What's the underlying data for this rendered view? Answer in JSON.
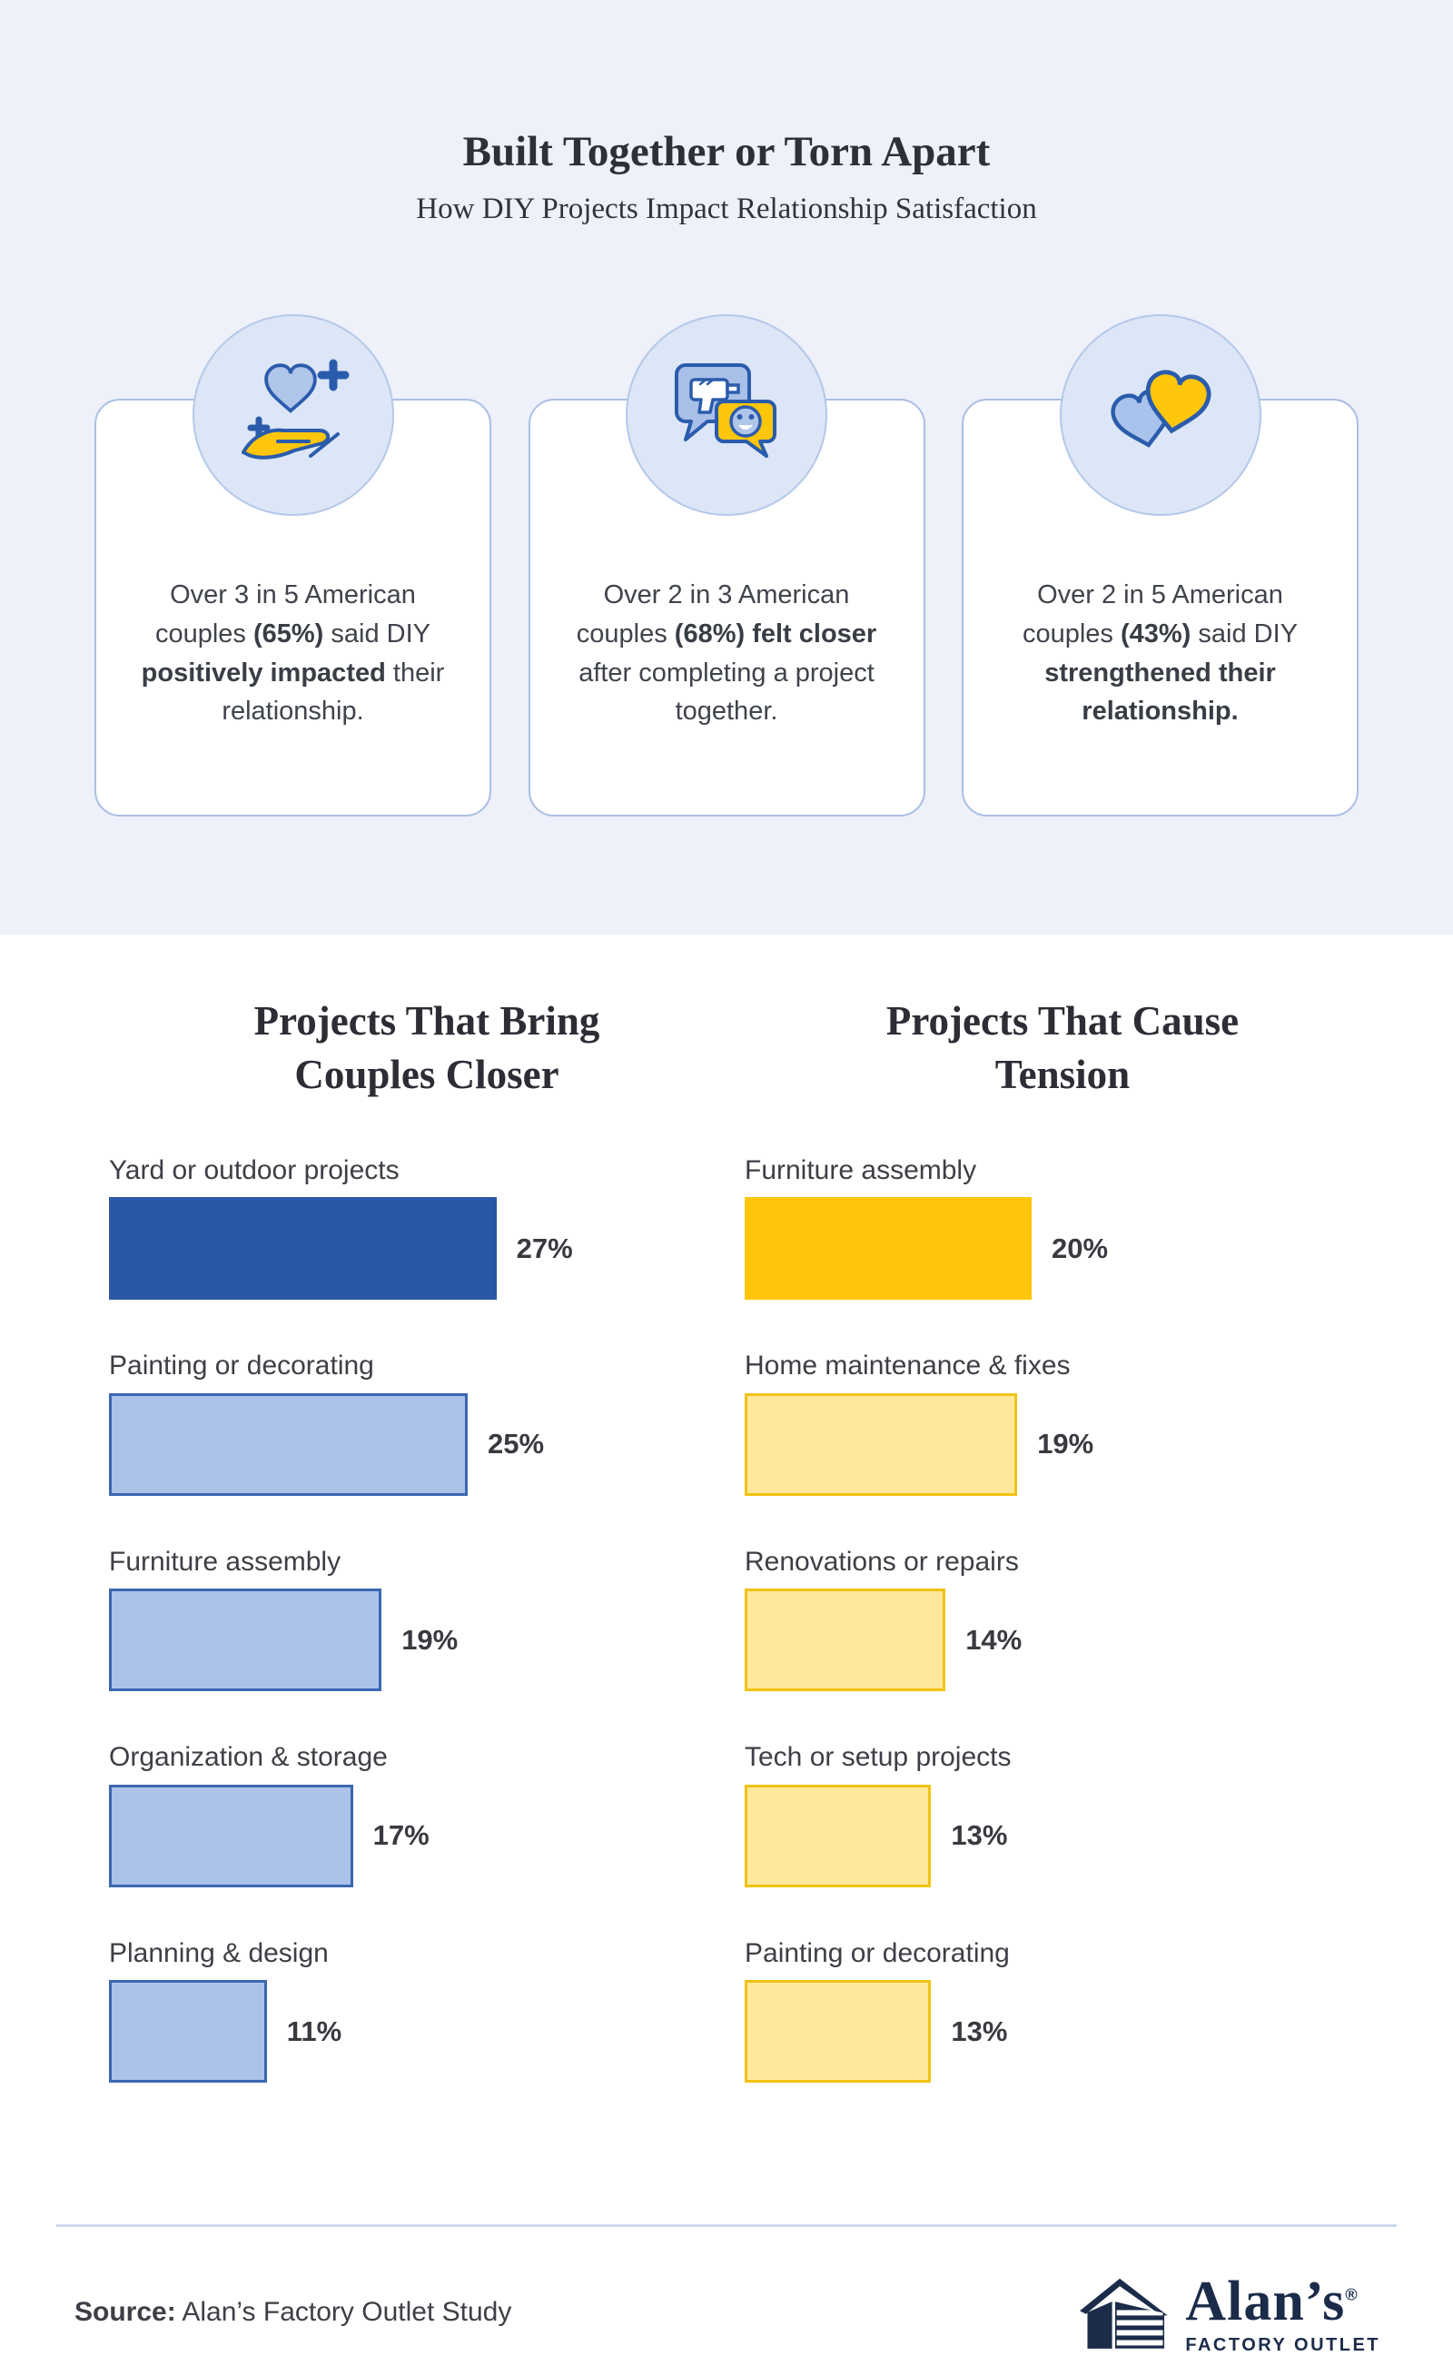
{
  "header": {
    "title": "Built Together or Torn Apart",
    "subtitle": "How DIY Projects Impact Relationship Satisfaction"
  },
  "colors": {
    "hero_background": "#eef0fa",
    "icon_circle_fill": "#dce6f6",
    "accent_blue": "#2b5cac",
    "accent_gold": "#ffc60b",
    "navy_logo": "#1b2b49"
  },
  "stat_cards": [
    {
      "icon": "hand-heart-icon",
      "segments": [
        {
          "text": "Over 3 in 5 American couples ",
          "bold": false
        },
        {
          "text": "(65%)",
          "bold": true
        },
        {
          "text": " said DIY ",
          "bold": false
        },
        {
          "text": "positively impacted",
          "bold": true
        },
        {
          "text": " their relationship.",
          "bold": false
        }
      ]
    },
    {
      "icon": "drill-chat-icon",
      "segments": [
        {
          "text": "Over 2 in 3 American couples ",
          "bold": false
        },
        {
          "text": "(68%) felt closer",
          "bold": true
        },
        {
          "text": " after completing a project together.",
          "bold": false
        }
      ]
    },
    {
      "icon": "interlocked-hearts-icon",
      "segments": [
        {
          "text": "Over 2 in 5 American couples ",
          "bold": false
        },
        {
          "text": "(43%)",
          "bold": true
        },
        {
          "text": " said DIY ",
          "bold": false
        },
        {
          "text": "strengthened their relationship.",
          "bold": true
        }
      ]
    }
  ],
  "chart_data": [
    {
      "type": "bar",
      "orientation": "horizontal",
      "title": "Projects That Bring Couples Closer",
      "categories": [
        "Yard or outdoor projects",
        "Painting or decorating",
        "Furniture assembly",
        "Organization & storage",
        "Planning & design"
      ],
      "values": [
        27,
        25,
        19,
        17,
        11
      ],
      "value_labels": [
        "27%",
        "25%",
        "19%",
        "17%",
        "11%"
      ],
      "unit": "%",
      "xlim": [
        0,
        30
      ],
      "grid": false,
      "legend": "none",
      "style_note": "first bar solid, remaining bars tinted with outline",
      "colors": {
        "solid_fill": "#2b57a7",
        "tint_fill": "#abc2e9",
        "tint_border": "#3b67b1"
      }
    },
    {
      "type": "bar",
      "orientation": "horizontal",
      "title": "Projects That Cause Tension",
      "categories": [
        "Furniture assembly",
        "Home maintenance & fixes",
        "Renovations or repairs",
        "Tech or setup projects",
        "Painting or decorating"
      ],
      "values": [
        20,
        19,
        14,
        13,
        13
      ],
      "value_labels": [
        "20%",
        "19%",
        "14%",
        "13%",
        "13%"
      ],
      "unit": "%",
      "xlim": [
        0,
        30
      ],
      "grid": false,
      "legend": "none",
      "style_note": "first bar solid, remaining bars tinted with outline",
      "colors": {
        "solid_fill": "#ffc60b",
        "tint_fill": "#ffe89b",
        "tint_border": "#f2c214"
      }
    }
  ],
  "footer": {
    "source_label": "Source:",
    "source_text": " Alan’s Factory Outlet Study",
    "logo": {
      "brand": "Alan’s",
      "registered": "®",
      "tagline": "FACTORY OUTLET"
    }
  }
}
